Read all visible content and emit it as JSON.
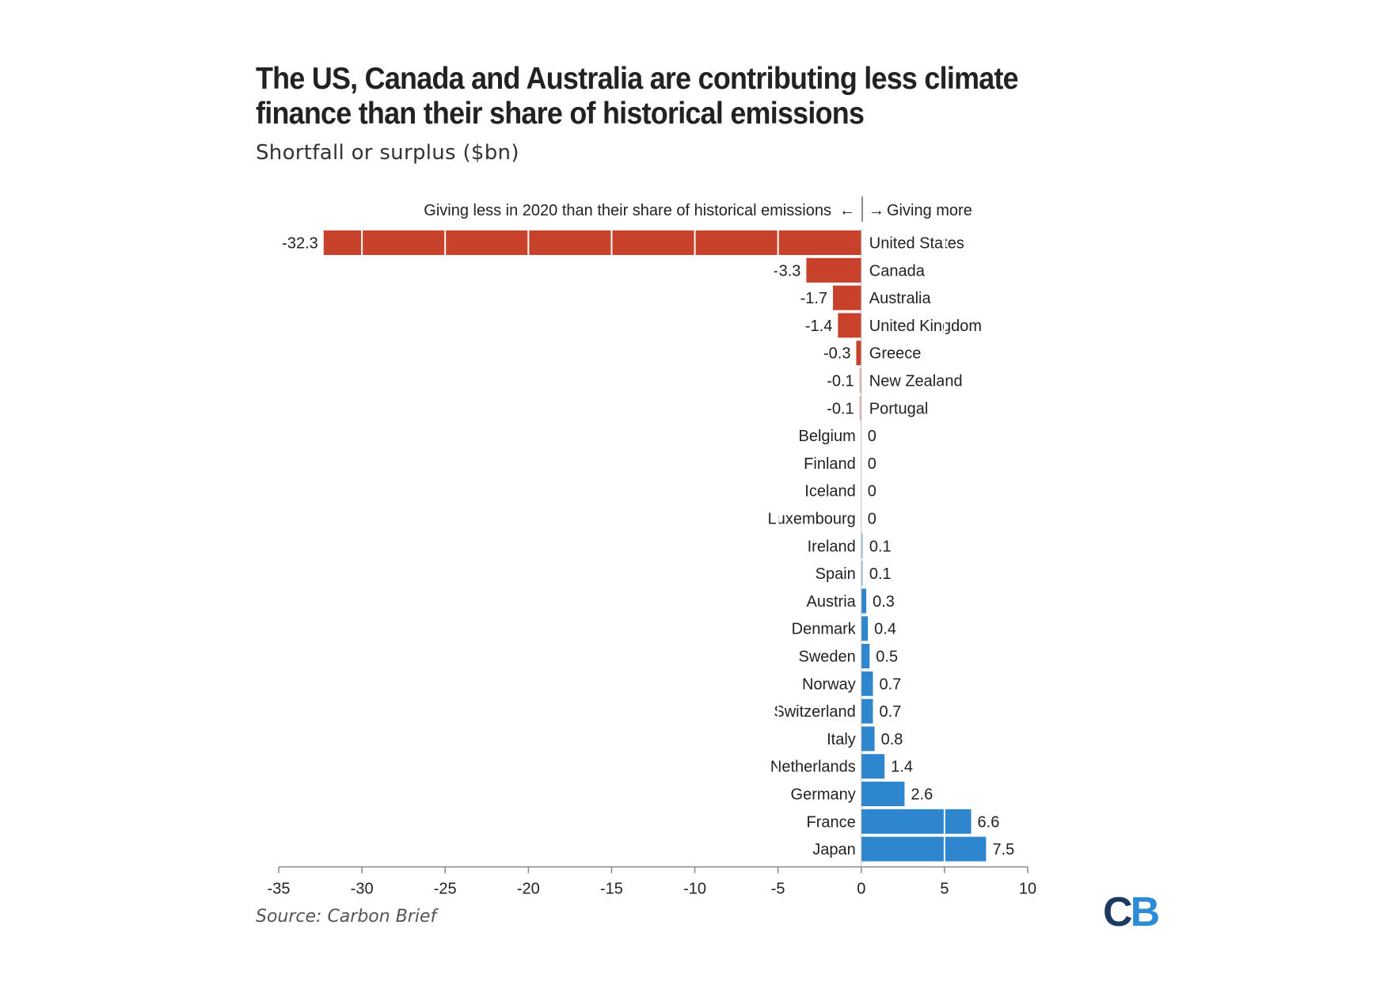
{
  "title": "The US, Canada and Australia are contributing less climate finance than their share of historical emissions",
  "subtitle": "Shortfall or surplus ($bn)",
  "source": "Source: Carbon Brief",
  "logo": {
    "left": "C",
    "right": "B"
  },
  "colors": {
    "negative": "#c8412b",
    "positive": "#2e86cf",
    "axis": "#888888",
    "text": "#222222"
  },
  "chart_data": {
    "type": "bar",
    "orientation": "horizontal",
    "annotation_left": "Giving less in 2020 than their share of historical emissions",
    "annotation_right": "Giving more",
    "categories": [
      "United States",
      "Canada",
      "Australia",
      "United Kingdom",
      "Greece",
      "New Zealand",
      "Portugal",
      "Belgium",
      "Finland",
      "Iceland",
      "Luxembourg",
      "Ireland",
      "Spain",
      "Austria",
      "Denmark",
      "Sweden",
      "Norway",
      "Switzerland",
      "Italy",
      "Netherlands",
      "Germany",
      "France",
      "Japan"
    ],
    "values": [
      -32.3,
      -3.3,
      -1.7,
      -1.4,
      -0.3,
      -0.1,
      -0.1,
      0,
      0,
      0,
      0,
      0.1,
      0.1,
      0.3,
      0.4,
      0.5,
      0.7,
      0.7,
      0.8,
      1.4,
      2.6,
      6.6,
      7.5
    ],
    "value_labels": [
      "-32.3",
      "-3.3",
      "-1.7",
      "-1.4",
      "-0.3",
      "-0.1",
      "-0.1",
      "0",
      "0",
      "0",
      "0",
      "0.1",
      "0.1",
      "0.3",
      "0.4",
      "0.5",
      "0.7",
      "0.7",
      "0.8",
      "1.4",
      "2.6",
      "6.6",
      "7.5"
    ],
    "xlim": [
      -35,
      10
    ],
    "xticks": [
      -35,
      -30,
      -25,
      -20,
      -15,
      -10,
      -5,
      0,
      5,
      10
    ],
    "xtick_labels": [
      "-35",
      "-30",
      "-25",
      "-20",
      "-15",
      "-10",
      "-5",
      "0",
      "5",
      "10"
    ],
    "grid": false
  }
}
